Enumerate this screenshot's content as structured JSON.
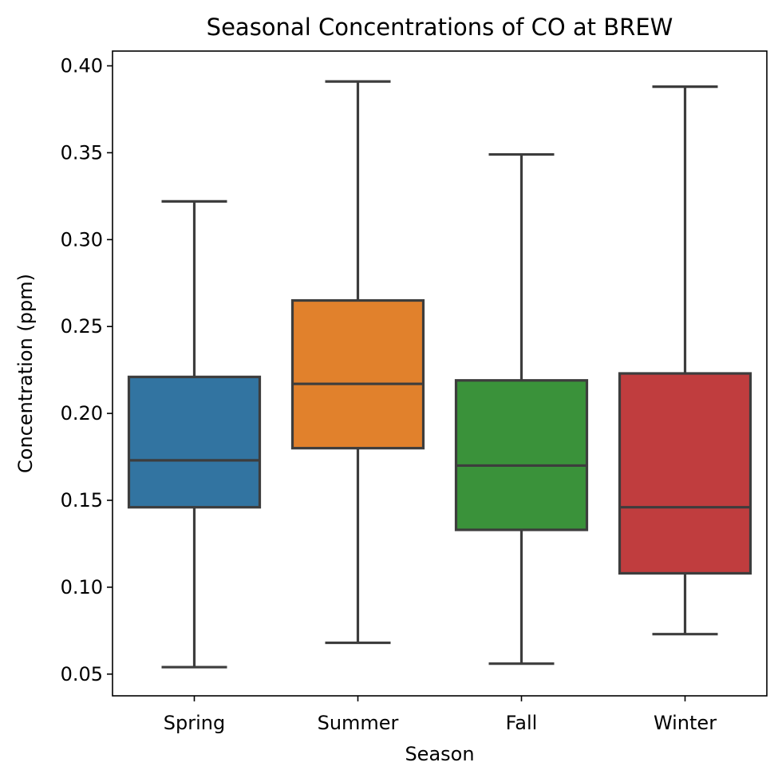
{
  "chart_data": {
    "type": "boxplot",
    "title": "Seasonal Concentrations of CO at BREW",
    "xlabel": "Season",
    "ylabel": "Concentration (ppm)",
    "categories": [
      "Spring",
      "Summer",
      "Fall",
      "Winter"
    ],
    "ylim": [
      0.0375,
      0.4085
    ],
    "yticks": [
      0.05,
      0.1,
      0.15,
      0.2,
      0.25,
      0.3,
      0.35,
      0.4
    ],
    "ytick_labels": [
      "0.05",
      "0.10",
      "0.15",
      "0.20",
      "0.25",
      "0.30",
      "0.35",
      "0.40"
    ],
    "grid": false,
    "series": [
      {
        "category": "Spring",
        "whisker_low": 0.054,
        "q1": 0.146,
        "median": 0.173,
        "q3": 0.221,
        "whisker_high": 0.322,
        "color": "#3274a1"
      },
      {
        "category": "Summer",
        "whisker_low": 0.068,
        "q1": 0.18,
        "median": 0.217,
        "q3": 0.265,
        "whisker_high": 0.391,
        "color": "#e1812c"
      },
      {
        "category": "Fall",
        "whisker_low": 0.056,
        "q1": 0.133,
        "median": 0.17,
        "q3": 0.219,
        "whisker_high": 0.349,
        "color": "#3a923a"
      },
      {
        "category": "Winter",
        "whisker_low": 0.073,
        "q1": 0.108,
        "median": 0.146,
        "q3": 0.223,
        "whisker_high": 0.388,
        "color": "#c03d3e"
      }
    ],
    "line_color": "#3d3d3d"
  }
}
